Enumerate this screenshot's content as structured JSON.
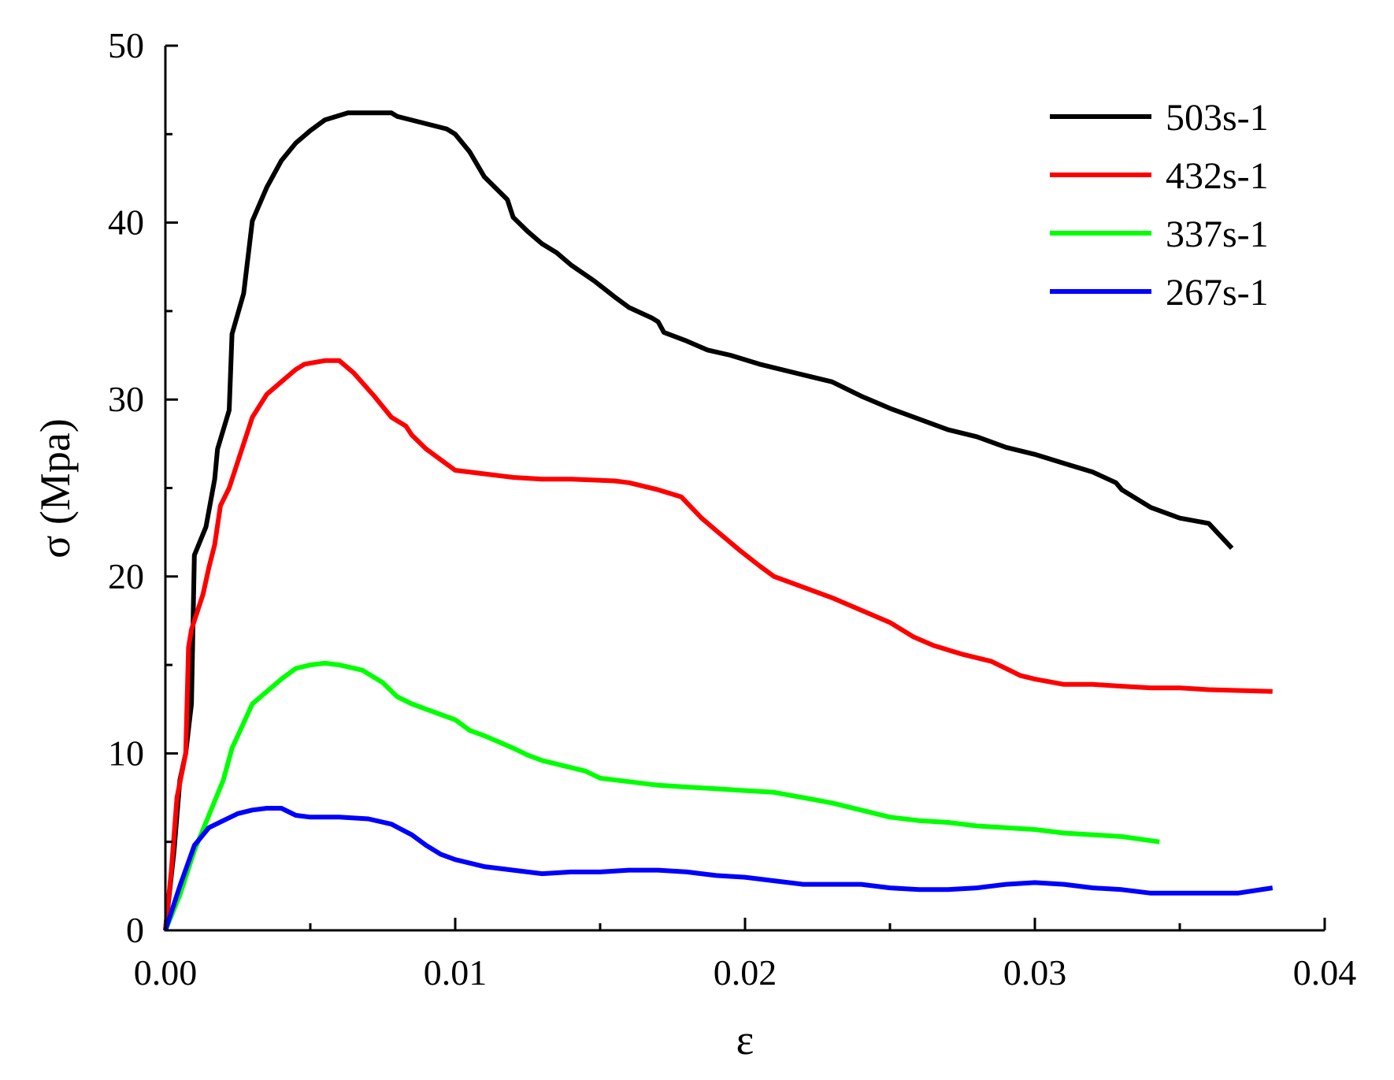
{
  "chart_data": {
    "type": "line",
    "xlabel": "ε",
    "ylabel": "σ (Mpa)",
    "xlim": [
      0,
      0.04
    ],
    "ylim": [
      0,
      50
    ],
    "x_ticks": [
      "0.00",
      "0.01",
      "0.02",
      "0.03",
      "0.04"
    ],
    "y_ticks": [
      "0",
      "10",
      "20",
      "30",
      "40",
      "50"
    ],
    "legend_position": "top-right",
    "grid": false,
    "series": [
      {
        "name": "503s-1",
        "color": "#000000",
        "points": [
          [
            0,
            0
          ],
          [
            0.0003,
            4.5
          ],
          [
            0.0005,
            8.5
          ],
          [
            0.0007,
            10
          ],
          [
            0.0009,
            12.8
          ],
          [
            0.001,
            21.2
          ],
          [
            0.0014,
            22.8
          ],
          [
            0.0017,
            25.5
          ],
          [
            0.0018,
            27.2
          ],
          [
            0.0022,
            29.4
          ],
          [
            0.0023,
            33.7
          ],
          [
            0.0027,
            36
          ],
          [
            0.003,
            40.1
          ],
          [
            0.0035,
            42
          ],
          [
            0.004,
            43.5
          ],
          [
            0.0045,
            44.5
          ],
          [
            0.005,
            45.2
          ],
          [
            0.0055,
            45.8
          ],
          [
            0.0063,
            46.2
          ],
          [
            0.0078,
            46.2
          ],
          [
            0.008,
            46
          ],
          [
            0.0097,
            45.3
          ],
          [
            0.01,
            45
          ],
          [
            0.0105,
            44
          ],
          [
            0.011,
            42.6
          ],
          [
            0.0118,
            41.3
          ],
          [
            0.012,
            40.3
          ],
          [
            0.0125,
            39.5
          ],
          [
            0.013,
            38.8
          ],
          [
            0.0135,
            38.3
          ],
          [
            0.014,
            37.6
          ],
          [
            0.0148,
            36.7
          ],
          [
            0.0155,
            35.8
          ],
          [
            0.016,
            35.2
          ],
          [
            0.0168,
            34.6
          ],
          [
            0.017,
            34.4
          ],
          [
            0.0172,
            33.8
          ],
          [
            0.018,
            33.3
          ],
          [
            0.0187,
            32.8
          ],
          [
            0.0195,
            32.5
          ],
          [
            0.0205,
            32
          ],
          [
            0.021,
            31.8
          ],
          [
            0.022,
            31.4
          ],
          [
            0.023,
            31
          ],
          [
            0.024,
            30.2
          ],
          [
            0.025,
            29.5
          ],
          [
            0.026,
            28.9
          ],
          [
            0.027,
            28.3
          ],
          [
            0.028,
            27.9
          ],
          [
            0.029,
            27.3
          ],
          [
            0.03,
            26.9
          ],
          [
            0.031,
            26.4
          ],
          [
            0.032,
            25.9
          ],
          [
            0.0328,
            25.3
          ],
          [
            0.033,
            24.9
          ],
          [
            0.034,
            23.9
          ],
          [
            0.035,
            23.3
          ],
          [
            0.036,
            23
          ],
          [
            0.0368,
            21.6
          ]
        ]
      },
      {
        "name": "432s-1",
        "color": "#ff0000",
        "points": [
          [
            0,
            0
          ],
          [
            0.0002,
            3.3
          ],
          [
            0.0004,
            7.5
          ],
          [
            0.0007,
            10
          ],
          [
            0.0008,
            16
          ],
          [
            0.0009,
            17
          ],
          [
            0.0013,
            19
          ],
          [
            0.0015,
            20.5
          ],
          [
            0.0017,
            21.8
          ],
          [
            0.0019,
            24
          ],
          [
            0.0022,
            25
          ],
          [
            0.0025,
            26.5
          ],
          [
            0.003,
            29
          ],
          [
            0.0035,
            30.3
          ],
          [
            0.004,
            31
          ],
          [
            0.0045,
            31.7
          ],
          [
            0.0048,
            32
          ],
          [
            0.0055,
            32.2
          ],
          [
            0.006,
            32.2
          ],
          [
            0.0065,
            31.5
          ],
          [
            0.0072,
            30.2
          ],
          [
            0.0078,
            29
          ],
          [
            0.0083,
            28.5
          ],
          [
            0.0085,
            28
          ],
          [
            0.009,
            27.2
          ],
          [
            0.0095,
            26.6
          ],
          [
            0.01,
            26
          ],
          [
            0.011,
            25.8
          ],
          [
            0.012,
            25.6
          ],
          [
            0.013,
            25.5
          ],
          [
            0.014,
            25.5
          ],
          [
            0.0155,
            25.4
          ],
          [
            0.016,
            25.3
          ],
          [
            0.017,
            24.9
          ],
          [
            0.0178,
            24.5
          ],
          [
            0.0185,
            23.3
          ],
          [
            0.019,
            22.6
          ],
          [
            0.0198,
            21.5
          ],
          [
            0.0205,
            20.6
          ],
          [
            0.021,
            20
          ],
          [
            0.022,
            19.4
          ],
          [
            0.023,
            18.8
          ],
          [
            0.024,
            18.1
          ],
          [
            0.025,
            17.4
          ],
          [
            0.0258,
            16.6
          ],
          [
            0.0265,
            16.1
          ],
          [
            0.0275,
            15.6
          ],
          [
            0.0285,
            15.2
          ],
          [
            0.029,
            14.8
          ],
          [
            0.0295,
            14.4
          ],
          [
            0.03,
            14.2
          ],
          [
            0.031,
            13.9
          ],
          [
            0.032,
            13.9
          ],
          [
            0.033,
            13.8
          ],
          [
            0.034,
            13.7
          ],
          [
            0.035,
            13.7
          ],
          [
            0.036,
            13.6
          ],
          [
            0.0382,
            13.5
          ]
        ]
      },
      {
        "name": "337s-1",
        "color": "#00ff00",
        "points": [
          [
            0,
            0
          ],
          [
            0.0005,
            2
          ],
          [
            0.001,
            4.5
          ],
          [
            0.0015,
            6.5
          ],
          [
            0.002,
            8.5
          ],
          [
            0.0023,
            10.3
          ],
          [
            0.0025,
            11
          ],
          [
            0.003,
            12.8
          ],
          [
            0.0035,
            13.5
          ],
          [
            0.004,
            14.2
          ],
          [
            0.0045,
            14.8
          ],
          [
            0.005,
            15
          ],
          [
            0.0055,
            15.1
          ],
          [
            0.006,
            15
          ],
          [
            0.0068,
            14.7
          ],
          [
            0.0075,
            14
          ],
          [
            0.008,
            13.2
          ],
          [
            0.0085,
            12.8
          ],
          [
            0.009,
            12.5
          ],
          [
            0.0095,
            12.2
          ],
          [
            0.01,
            11.9
          ],
          [
            0.0105,
            11.3
          ],
          [
            0.011,
            11
          ],
          [
            0.012,
            10.3
          ],
          [
            0.0125,
            9.9
          ],
          [
            0.013,
            9.6
          ],
          [
            0.014,
            9.2
          ],
          [
            0.0145,
            9
          ],
          [
            0.015,
            8.6
          ],
          [
            0.016,
            8.4
          ],
          [
            0.017,
            8.2
          ],
          [
            0.018,
            8.1
          ],
          [
            0.019,
            8
          ],
          [
            0.02,
            7.9
          ],
          [
            0.021,
            7.8
          ],
          [
            0.022,
            7.5
          ],
          [
            0.023,
            7.2
          ],
          [
            0.024,
            6.8
          ],
          [
            0.025,
            6.4
          ],
          [
            0.026,
            6.2
          ],
          [
            0.027,
            6.1
          ],
          [
            0.028,
            5.9
          ],
          [
            0.029,
            5.8
          ],
          [
            0.03,
            5.7
          ],
          [
            0.031,
            5.5
          ],
          [
            0.032,
            5.4
          ],
          [
            0.033,
            5.3
          ],
          [
            0.0343,
            5
          ]
        ]
      },
      {
        "name": "267s-1",
        "color": "#0000ff",
        "points": [
          [
            0,
            0
          ],
          [
            0.0005,
            2.5
          ],
          [
            0.001,
            4.8
          ],
          [
            0.0015,
            5.8
          ],
          [
            0.002,
            6.2
          ],
          [
            0.0025,
            6.6
          ],
          [
            0.003,
            6.8
          ],
          [
            0.0035,
            6.9
          ],
          [
            0.004,
            6.9
          ],
          [
            0.0045,
            6.5
          ],
          [
            0.005,
            6.4
          ],
          [
            0.006,
            6.4
          ],
          [
            0.007,
            6.3
          ],
          [
            0.0078,
            6
          ],
          [
            0.0085,
            5.4
          ],
          [
            0.009,
            4.8
          ],
          [
            0.0095,
            4.3
          ],
          [
            0.01,
            4
          ],
          [
            0.011,
            3.6
          ],
          [
            0.012,
            3.4
          ],
          [
            0.013,
            3.2
          ],
          [
            0.014,
            3.3
          ],
          [
            0.015,
            3.3
          ],
          [
            0.016,
            3.4
          ],
          [
            0.017,
            3.4
          ],
          [
            0.018,
            3.3
          ],
          [
            0.019,
            3.1
          ],
          [
            0.02,
            3
          ],
          [
            0.021,
            2.8
          ],
          [
            0.022,
            2.6
          ],
          [
            0.023,
            2.6
          ],
          [
            0.024,
            2.6
          ],
          [
            0.025,
            2.4
          ],
          [
            0.026,
            2.3
          ],
          [
            0.027,
            2.3
          ],
          [
            0.028,
            2.4
          ],
          [
            0.029,
            2.6
          ],
          [
            0.03,
            2.7
          ],
          [
            0.031,
            2.6
          ],
          [
            0.032,
            2.4
          ],
          [
            0.033,
            2.3
          ],
          [
            0.034,
            2.1
          ],
          [
            0.035,
            2.1
          ],
          [
            0.036,
            2.1
          ],
          [
            0.037,
            2.1
          ],
          [
            0.0382,
            2.4
          ]
        ]
      }
    ]
  }
}
